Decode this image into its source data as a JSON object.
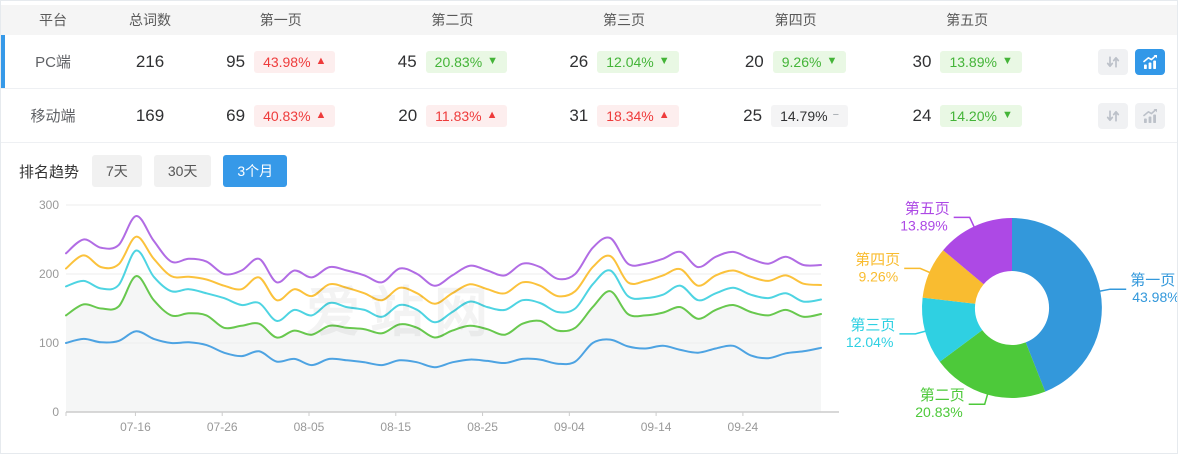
{
  "colors": {
    "accent": "#3699e8",
    "badge_red_text": "#ee3b3b",
    "badge_red_bg": "#fdeeee",
    "badge_green_text": "#44b438",
    "badge_green_bg": "#e9f8e4",
    "badge_gray_text": "#303133",
    "badge_gray_bg": "#f4f4f5",
    "icon_gray": "#bcc1c9",
    "icon_active_bg": "#3298e8",
    "axis_label": "#999999",
    "gridline": "#ededed",
    "axis_line": "#cccccc"
  },
  "watermark": "爱站网",
  "table": {
    "headers": [
      "平台",
      "总词数",
      "第一页",
      "第二页",
      "第三页",
      "第四页",
      "第五页"
    ],
    "rows": [
      {
        "platform": "PC端",
        "total": "216",
        "selected": true,
        "pages": [
          {
            "count": "95",
            "pct": "43.98%",
            "dir": "up",
            "tone": "red"
          },
          {
            "count": "45",
            "pct": "20.83%",
            "dir": "down",
            "tone": "green"
          },
          {
            "count": "26",
            "pct": "12.04%",
            "dir": "down",
            "tone": "green"
          },
          {
            "count": "20",
            "pct": "9.26%",
            "dir": "down",
            "tone": "green"
          },
          {
            "count": "30",
            "pct": "13.89%",
            "dir": "down",
            "tone": "green"
          }
        ],
        "actions": {
          "sort_active": false,
          "chart_active": true
        }
      },
      {
        "platform": "移动端",
        "total": "169",
        "selected": false,
        "pages": [
          {
            "count": "69",
            "pct": "40.83%",
            "dir": "up",
            "tone": "red"
          },
          {
            "count": "20",
            "pct": "11.83%",
            "dir": "up",
            "tone": "red"
          },
          {
            "count": "31",
            "pct": "18.34%",
            "dir": "up",
            "tone": "red"
          },
          {
            "count": "25",
            "pct": "14.79%",
            "dir": "flat",
            "tone": "gray"
          },
          {
            "count": "24",
            "pct": "14.20%",
            "dir": "down",
            "tone": "green"
          }
        ],
        "actions": {
          "sort_active": false,
          "chart_active": false
        }
      }
    ]
  },
  "trend": {
    "label": "排名趋势",
    "ranges": [
      {
        "label": "7天",
        "active": false
      },
      {
        "label": "30天",
        "active": false
      },
      {
        "label": "3个月",
        "active": true
      }
    ]
  },
  "chart_data": [
    {
      "type": "line",
      "title": "排名趋势（3个月，PC端）",
      "stacked_cumulative": true,
      "x_span_days": 87,
      "x_tick_days": [
        8,
        18,
        28,
        38,
        48,
        58,
        68,
        78
      ],
      "x_tick_labels": [
        "07-16",
        "07-26",
        "08-05",
        "08-15",
        "08-25",
        "09-04",
        "09-14",
        "09-24"
      ],
      "ylim": [
        0,
        300
      ],
      "yticks": [
        0,
        100,
        200,
        300
      ],
      "grid": true,
      "legend": "none",
      "area_fill": {
        "series_index": 1,
        "color": "#f5f6f6"
      },
      "series": [
        {
          "name": "第一页",
          "color": "#4da3e2",
          "values": [
            100,
            106,
            101,
            103,
            117,
            106,
            100,
            101,
            97,
            86,
            81,
            88,
            73,
            77,
            68,
            77,
            75,
            72,
            68,
            75,
            72,
            65,
            72,
            76,
            74,
            71,
            77,
            76,
            70,
            73,
            100,
            105,
            95,
            92,
            96,
            90,
            86,
            92,
            96,
            82,
            78,
            85,
            88,
            93
          ]
        },
        {
          "name": "第二页(累计)",
          "color": "#68c84e",
          "values": [
            140,
            156,
            150,
            153,
            197,
            162,
            140,
            143,
            140,
            122,
            125,
            128,
            108,
            118,
            112,
            125,
            122,
            120,
            114,
            127,
            122,
            108,
            118,
            125,
            120,
            112,
            128,
            132,
            118,
            122,
            152,
            175,
            142,
            140,
            144,
            152,
            135,
            148,
            155,
            145,
            140,
            148,
            138,
            142
          ]
        },
        {
          "name": "第三页(累计)",
          "color": "#4ed4e2",
          "values": [
            182,
            190,
            179,
            184,
            234,
            196,
            175,
            178,
            172,
            165,
            155,
            158,
            132,
            148,
            140,
            158,
            152,
            148,
            138,
            155,
            148,
            130,
            145,
            160,
            152,
            148,
            162,
            158,
            145,
            150,
            185,
            205,
            168,
            165,
            170,
            183,
            162,
            172,
            180,
            170,
            165,
            172,
            160,
            163
          ]
        },
        {
          "name": "第四页(累计)",
          "color": "#fbc23c",
          "values": [
            208,
            227,
            210,
            214,
            254,
            222,
            197,
            196,
            192,
            183,
            178,
            195,
            162,
            178,
            168,
            185,
            180,
            172,
            162,
            180,
            172,
            157,
            172,
            185,
            178,
            172,
            188,
            183,
            168,
            175,
            210,
            226,
            188,
            190,
            198,
            207,
            183,
            198,
            205,
            196,
            190,
            198,
            186,
            184
          ]
        },
        {
          "name": "第五页(累计)",
          "color": "#b16ce4",
          "values": [
            230,
            250,
            238,
            242,
            284,
            248,
            218,
            222,
            218,
            200,
            205,
            222,
            188,
            205,
            195,
            210,
            205,
            198,
            188,
            208,
            200,
            183,
            198,
            212,
            205,
            198,
            215,
            210,
            193,
            200,
            238,
            252,
            215,
            215,
            222,
            232,
            210,
            225,
            232,
            222,
            215,
            225,
            213,
            213
          ]
        }
      ]
    },
    {
      "type": "pie",
      "title": "PC端 页面分布",
      "donut": true,
      "inner_radius_ratio": 0.41,
      "slices": [
        {
          "label": "第一页",
          "pct_text": "43.98%",
          "value": 43.98,
          "color": "#3398db"
        },
        {
          "label": "第二页",
          "pct_text": "20.83%",
          "value": 20.83,
          "color": "#4dc93a"
        },
        {
          "label": "第三页",
          "pct_text": "12.04%",
          "value": 12.04,
          "color": "#2fd0e2"
        },
        {
          "label": "第四页",
          "pct_text": "9.26%",
          "value": 9.26,
          "color": "#f9bc30"
        },
        {
          "label": "第五页",
          "pct_text": "13.89%",
          "value": 13.89,
          "color": "#ad49e5"
        }
      ]
    }
  ]
}
